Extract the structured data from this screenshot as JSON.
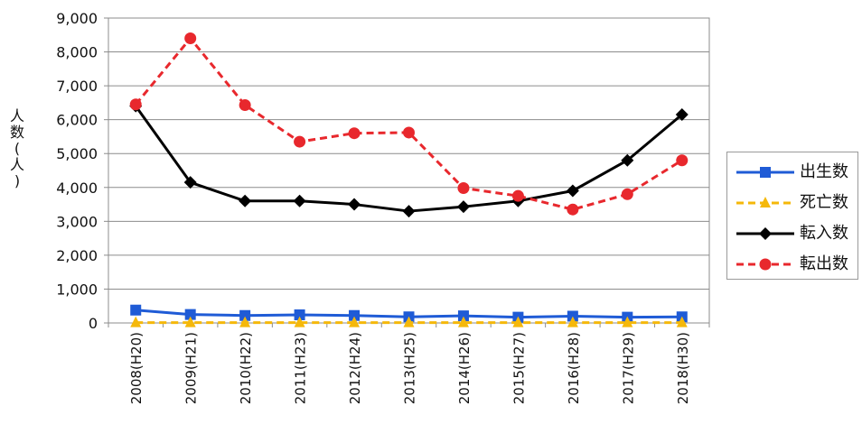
{
  "chart_data": {
    "type": "line",
    "categories": [
      "2008(H20)",
      "2009(H21)",
      "2010(H22)",
      "2011(H23)",
      "2012(H24)",
      "2013(H25)",
      "2014(H26)",
      "2015(H27)",
      "2016(H28)",
      "2017(H29)",
      "2018(H30)"
    ],
    "ylabel": "人数(人)",
    "ylim": [
      0,
      9000
    ],
    "yticks": [
      "0",
      "1,000",
      "2,000",
      "3,000",
      "4,000",
      "5,000",
      "6,000",
      "7,000",
      "8,000",
      "9,000"
    ],
    "grid": true,
    "legend_position": "right",
    "series": [
      {
        "name": "出生数",
        "values": [
          380,
          250,
          220,
          240,
          220,
          180,
          210,
          170,
          200,
          170,
          180
        ],
        "color": "#1f5bd6",
        "dash": "solid",
        "marker": "square"
      },
      {
        "name": "死亡数",
        "values": [
          10,
          10,
          10,
          10,
          10,
          10,
          10,
          10,
          10,
          10,
          10
        ],
        "color": "#f5b80a",
        "dash": "dashed",
        "marker": "triangle"
      },
      {
        "name": "転入数",
        "values": [
          6400,
          4150,
          3600,
          3600,
          3500,
          3300,
          3430,
          3600,
          3900,
          4800,
          6150
        ],
        "color": "#000000",
        "dash": "solid",
        "marker": "diamond"
      },
      {
        "name": "転出数",
        "values": [
          6450,
          8400,
          6430,
          5350,
          5600,
          5620,
          3980,
          3750,
          3350,
          3800,
          4800
        ],
        "color": "#e8282d",
        "dash": "dashed",
        "marker": "circle"
      }
    ]
  }
}
